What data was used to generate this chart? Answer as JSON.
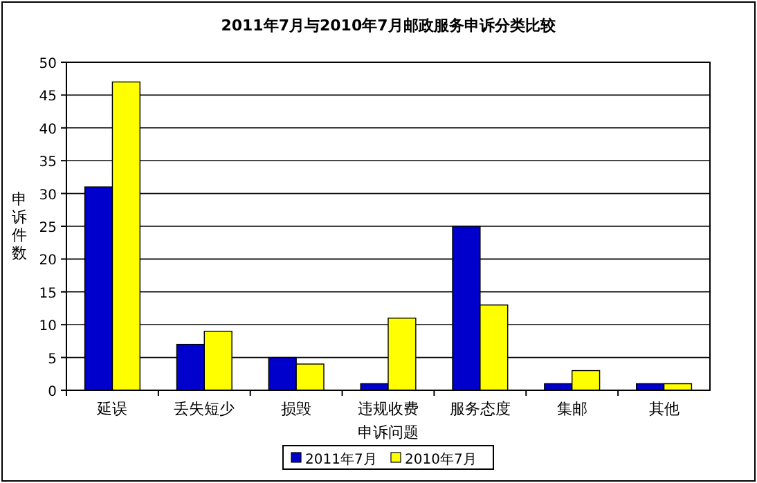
{
  "chart_data": {
    "type": "bar",
    "title": "2011年7月与2010年7月邮政服务申诉分类比较",
    "xlabel": "申诉问题",
    "ylabel": "申诉件数",
    "categories": [
      "延误",
      "丢失短少",
      "损毁",
      "违规收费",
      "服务态度",
      "集邮",
      "其他"
    ],
    "series": [
      {
        "name": "2011年7月",
        "color": "#0000cc",
        "values": [
          31,
          7,
          5,
          1,
          25,
          1,
          1
        ]
      },
      {
        "name": "2010年7月",
        "color": "#ffff00",
        "values": [
          47,
          9,
          4,
          11,
          13,
          3,
          1
        ]
      }
    ],
    "ylim": [
      0,
      50
    ],
    "yticks": [
      0,
      5,
      10,
      15,
      20,
      25,
      30,
      35,
      40,
      45,
      50
    ],
    "grid": "y",
    "legend": "bottom"
  }
}
